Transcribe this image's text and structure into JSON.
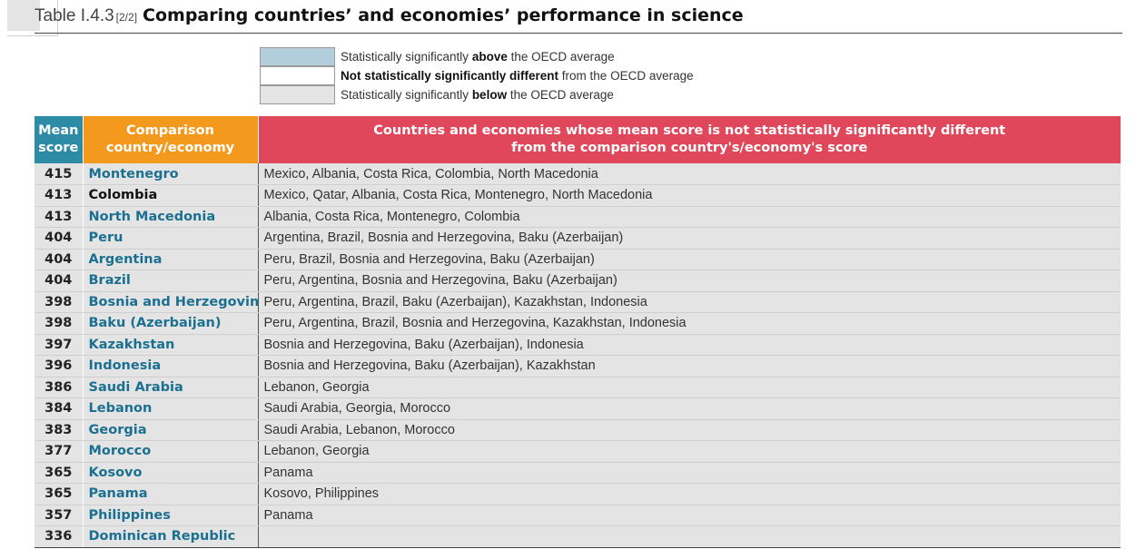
{
  "title": {
    "prefix": "Table I.4.3",
    "part": "[2/2]",
    "main": "Comparing countries’ and economies’ performance in science"
  },
  "legend": [
    {
      "key": "above",
      "color": "#b2cedc",
      "before": "Statistically significantly ",
      "bold": "above",
      "after": " the OECD average"
    },
    {
      "key": "same",
      "color": "#ffffff",
      "before": "",
      "bold": "Not statistically significantly different",
      "after": " from the OECD average"
    },
    {
      "key": "below",
      "color": "#e4e4e4",
      "before": "Statistically significantly ",
      "bold": "below",
      "after": " the OECD average"
    }
  ],
  "columns": {
    "score_line1": "Mean",
    "score_line2": "score",
    "country_line1": "Comparison",
    "country_line2": "country/economy",
    "list_line1": "Countries and economies whose mean score is not statistically significantly different",
    "list_line2": "from the comparison country's/economy's score"
  },
  "rows": [
    {
      "score": "415",
      "country": "Montenegro",
      "status": "below",
      "list": "Mexico, Albania, Costa Rica, Colombia, North Macedonia"
    },
    {
      "score": "413",
      "country": "Colombia",
      "status": "same",
      "list": "Mexico, Qatar, Albania, Costa Rica, Montenegro, North Macedonia"
    },
    {
      "score": "413",
      "country": "North Macedonia",
      "status": "below",
      "list": "Albania, Costa Rica, Montenegro, Colombia"
    },
    {
      "score": "404",
      "country": "Peru",
      "status": "below",
      "list": "Argentina, Brazil, Bosnia and Herzegovina, Baku (Azerbaijan)"
    },
    {
      "score": "404",
      "country": "Argentina",
      "status": "below",
      "list": "Peru, Brazil, Bosnia and Herzegovina, Baku (Azerbaijan)"
    },
    {
      "score": "404",
      "country": "Brazil",
      "status": "below",
      "list": "Peru, Argentina, Bosnia and Herzegovina, Baku (Azerbaijan)"
    },
    {
      "score": "398",
      "country": "Bosnia and Herzegovina",
      "status": "below",
      "list": "Peru, Argentina, Brazil, Baku (Azerbaijan), Kazakhstan, Indonesia"
    },
    {
      "score": "398",
      "country": "Baku (Azerbaijan)",
      "status": "below",
      "list": "Peru, Argentina, Brazil, Bosnia and Herzegovina, Kazakhstan, Indonesia"
    },
    {
      "score": "397",
      "country": "Kazakhstan",
      "status": "below",
      "list": "Bosnia and Herzegovina, Baku (Azerbaijan), Indonesia"
    },
    {
      "score": "396",
      "country": "Indonesia",
      "status": "below",
      "list": "Bosnia and Herzegovina, Baku (Azerbaijan), Kazakhstan"
    },
    {
      "score": "386",
      "country": "Saudi Arabia",
      "status": "below",
      "list": "Lebanon, Georgia"
    },
    {
      "score": "384",
      "country": "Lebanon",
      "status": "below",
      "list": "Saudi Arabia, Georgia, Morocco"
    },
    {
      "score": "383",
      "country": "Georgia",
      "status": "below",
      "list": "Saudi Arabia, Lebanon, Morocco"
    },
    {
      "score": "377",
      "country": "Morocco",
      "status": "below",
      "list": "Lebanon, Georgia"
    },
    {
      "score": "365",
      "country": "Kosovo",
      "status": "below",
      "list": "Panama"
    },
    {
      "score": "365",
      "country": "Panama",
      "status": "below",
      "list": "Kosovo, Philippines"
    },
    {
      "score": "357",
      "country": "Philippines",
      "status": "below",
      "list": "Panama"
    },
    {
      "score": "336",
      "country": "Dominican Republic",
      "status": "below",
      "list": ""
    }
  ]
}
